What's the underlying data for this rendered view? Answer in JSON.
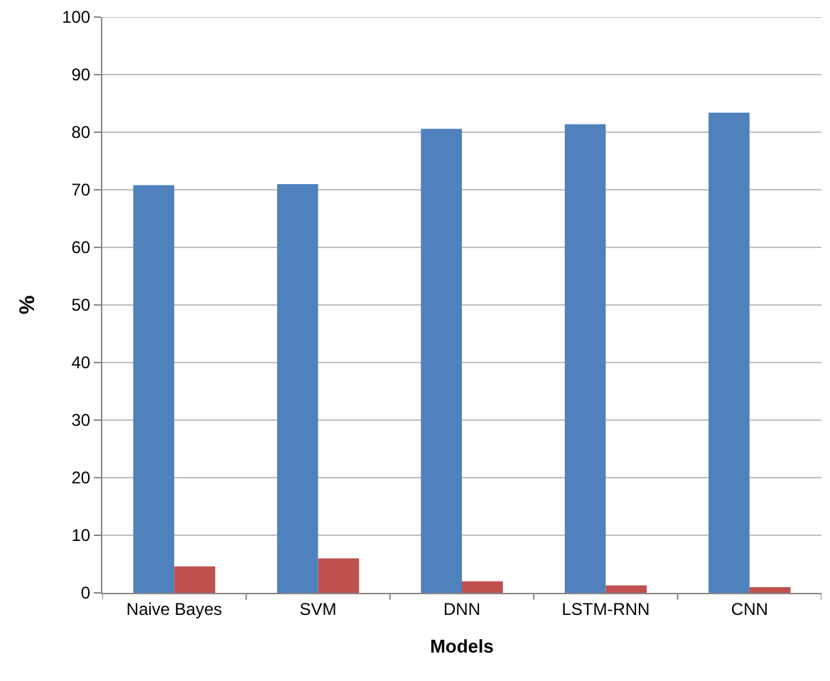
{
  "chart_data": {
    "type": "bar",
    "xlabel": "Models",
    "ylabel": "%",
    "categories": [
      "Naive Bayes",
      "SVM",
      "DNN",
      "LSTM-RNN",
      "CNN"
    ],
    "series": [
      {
        "color": "#4f81bd",
        "values": [
          70.8,
          71.0,
          80.6,
          81.4,
          83.4
        ]
      },
      {
        "color": "#c0504d",
        "values": [
          4.6,
          6.0,
          2.0,
          1.3,
          1.0
        ]
      }
    ],
    "ylim": [
      0,
      100
    ],
    "yticks": [
      0,
      10,
      20,
      30,
      40,
      50,
      60,
      70,
      80,
      90,
      100
    ],
    "grid": "y"
  }
}
